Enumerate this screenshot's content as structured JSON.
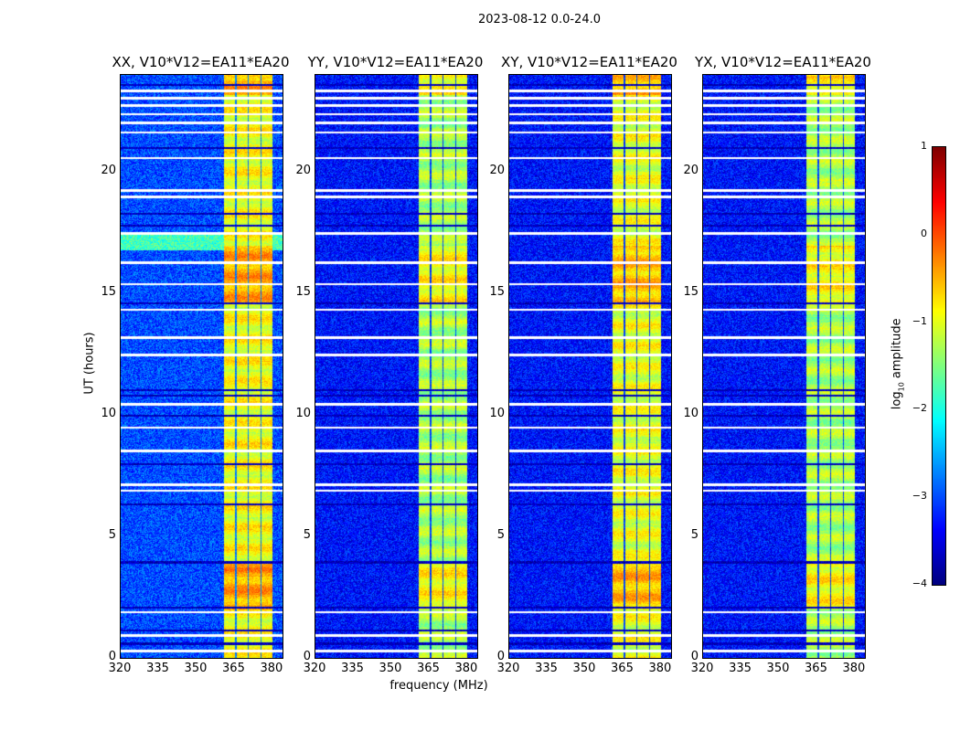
{
  "chart_data": {
    "type": "heatmap",
    "title": "2023-08-12 0.0-24.0",
    "xlabel": "frequency (MHz)",
    "ylabel": "UT (hours)",
    "xlim": [
      320,
      384
    ],
    "ylim": [
      0,
      24
    ],
    "xticks": [
      "320",
      "335",
      "350",
      "365",
      "380"
    ],
    "yticks": [
      "0",
      "5",
      "10",
      "15",
      "20"
    ],
    "colorbar": {
      "label_main": "log",
      "label_sub": "10",
      "label_rest": " amplitude",
      "range": [
        -4,
        1
      ],
      "ticks": [
        "1",
        "0",
        "−1",
        "−2",
        "−3",
        "−4"
      ],
      "colormap": "jet"
    },
    "panels": [
      {
        "title": "XX, V10*V12=EA11*EA20",
        "band_level": -0.9,
        "base_level": -3.0
      },
      {
        "title": "YY, V10*V12=EA11*EA20",
        "band_level": -1.3,
        "base_level": -3.3
      },
      {
        "title": "XY, V10*V12=EA11*EA20",
        "band_level": -1.0,
        "base_level": -3.3
      },
      {
        "title": "YX, V10*V12=EA11*EA20",
        "band_level": -1.3,
        "base_level": -3.3
      }
    ],
    "bright_band_mhz": [
      360.5,
      380
    ],
    "flagged_hours": [
      0.3,
      0.95,
      1.9,
      6.9,
      7.15,
      8.55,
      9.5,
      10.45,
      12.5,
      13.2,
      14.35,
      15.4,
      16.3,
      17.5,
      19.0,
      19.25,
      20.6,
      21.65,
      22.05,
      22.4,
      22.75,
      23.05,
      23.35
    ],
    "dark_hours": [
      0.6,
      1.15,
      2.1,
      3.95,
      6.35,
      8.0,
      10.0,
      10.8,
      11.05,
      14.6,
      17.8,
      18.3,
      21.0,
      23.6
    ],
    "enhanced_hours": [
      [
        2.0,
        4.0
      ],
      [
        14.6,
        17.0
      ],
      [
        23.2,
        24.0
      ]
    ]
  }
}
